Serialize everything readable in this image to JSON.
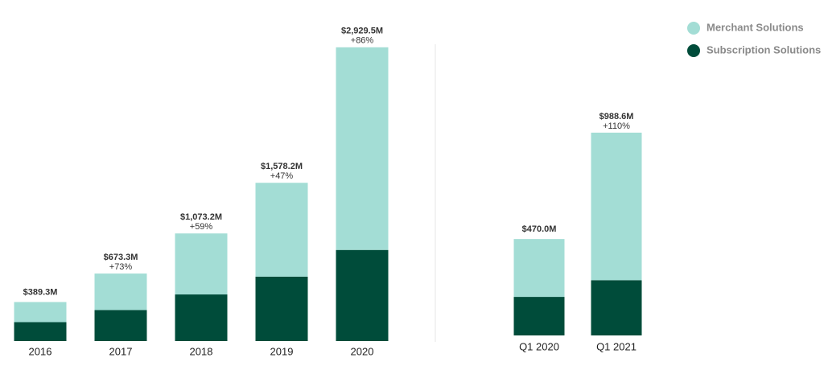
{
  "chart_data": [
    {
      "type": "stacked_bar",
      "categories": [
        "2016",
        "2017",
        "2018",
        "2019",
        "2020"
      ],
      "series": [
        {
          "name": "Subscription Solutions",
          "color": "#004c3a",
          "values": [
            188.6,
            310.0,
            464.9,
            642.2,
            908.8
          ]
        },
        {
          "name": "Merchant Solutions",
          "color": "#a3ddd5",
          "values": [
            200.7,
            363.3,
            608.3,
            936.0,
            2020.7
          ]
        }
      ],
      "annotations": [
        {
          "total": "$389.3M"
        },
        {
          "total": "$673.3M",
          "growth": "+73%"
        },
        {
          "total": "$1,073.2M",
          "growth": "+59%"
        },
        {
          "total": "$1,578.2M",
          "growth": "+47%"
        },
        {
          "total": "$2,929.5M",
          "growth": "+86%"
        }
      ],
      "ylim": [
        0,
        3000
      ]
    },
    {
      "type": "stacked_bar",
      "categories": [
        "Q1 2020",
        "Q1 2021"
      ],
      "series": [
        {
          "color": "#004c3a",
          "values": [
            188.0,
            269.4
          ]
        },
        {
          "color": "#a3ddd5",
          "values": [
            282.0,
            719.2
          ]
        }
      ],
      "annotations": [
        {
          "total": "$470.0M"
        },
        {
          "total": "$988.6M",
          "growth": "+110%"
        }
      ],
      "ylim": [
        0,
        1000
      ]
    }
  ]
}
